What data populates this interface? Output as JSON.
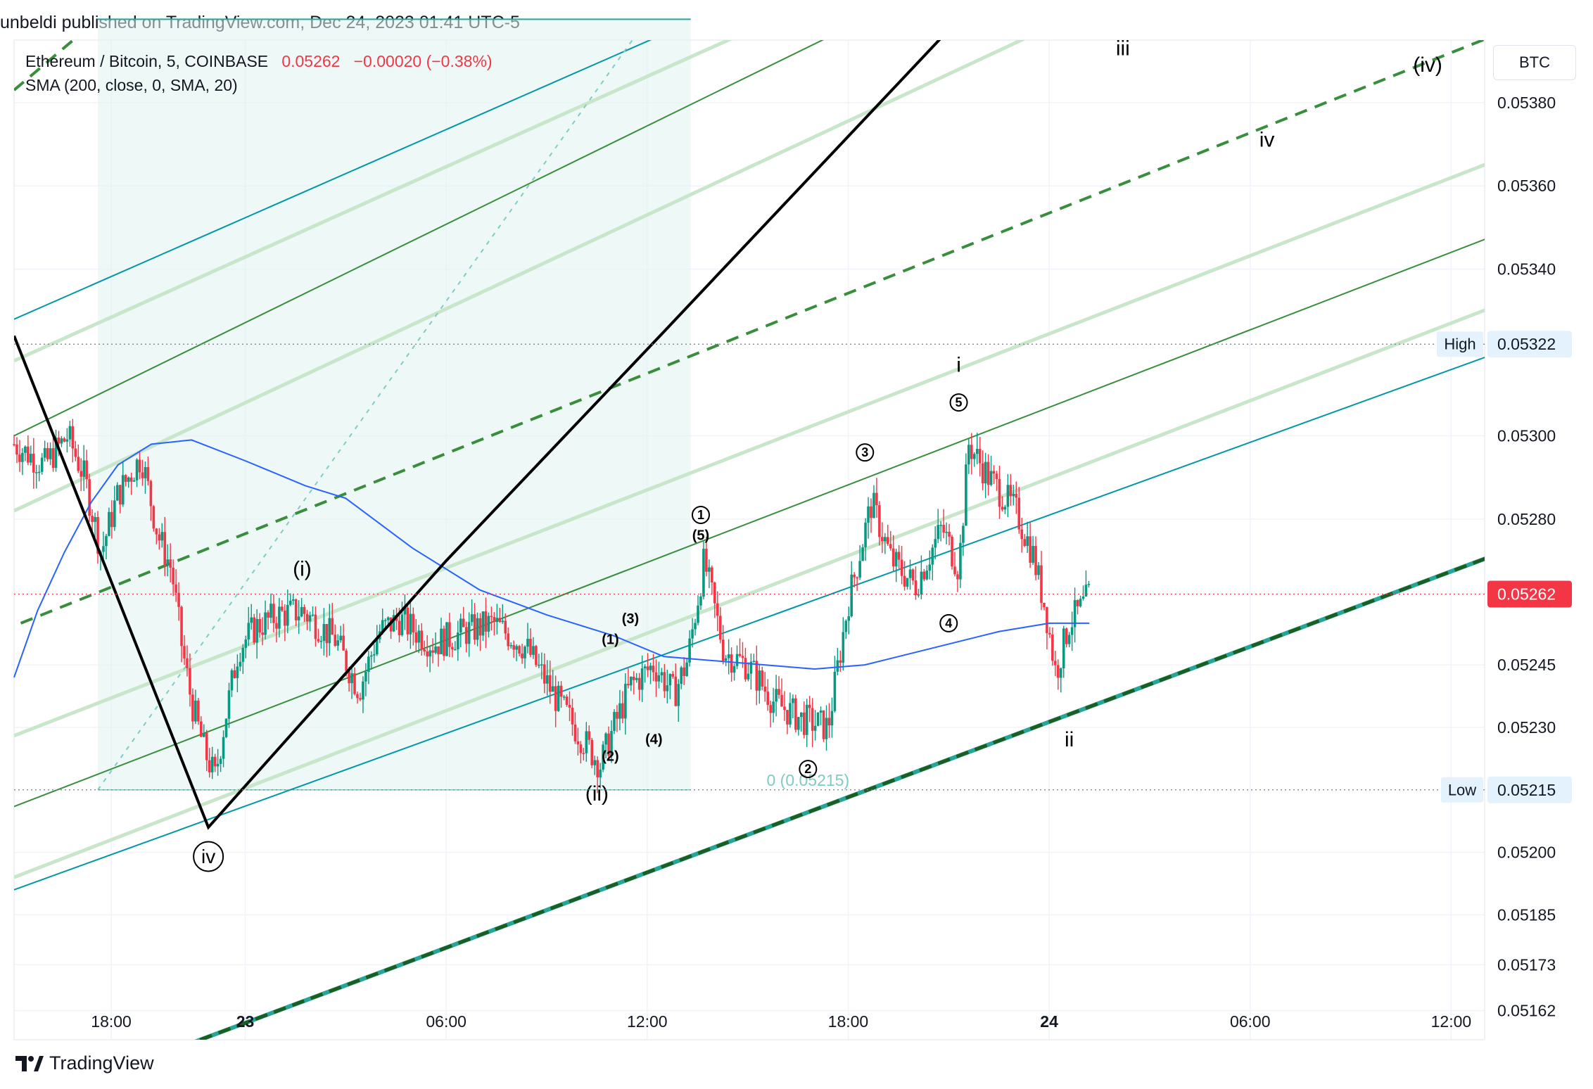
{
  "publisher": "unbeldi published on TradingView.com, Dec 24, 2023 01:41 UTC-5",
  "legend": {
    "symbol": "Ethereum / Bitcoin, 5, COINBASE",
    "last": "0.05262",
    "change": "−0.00020 (−0.38%)",
    "indicator": "SMA (200, close, 0, SMA, 20)"
  },
  "currency": "BTC",
  "brand": "TradingView",
  "colors": {
    "up": "#089981",
    "down": "#f23645",
    "sma": "#2962ff",
    "channel_dark": "#388e3c",
    "channel_light": "#c8e6c9",
    "teal": "#0097a7",
    "zone": "#e0f2f1",
    "last_price_bg": "#f23645",
    "high_low_bg": "#e3f2fd"
  },
  "chart_data": {
    "type": "candlestick",
    "title": "Ethereum / Bitcoin, 5, COINBASE",
    "interval_minutes": 5,
    "x_range_hours": [
      -6.9,
      37.0
    ],
    "ylim": [
      0.05155,
      0.05395
    ],
    "x_tick_labels": [
      {
        "label": "18:00",
        "t": -4.0
      },
      {
        "label": "23",
        "t": 0.0,
        "bold": true
      },
      {
        "label": "06:00",
        "t": 6.0
      },
      {
        "label": "12:00",
        "t": 12.0
      },
      {
        "label": "18:00",
        "t": 18.0
      },
      {
        "label": "24",
        "t": 24.0,
        "bold": true
      },
      {
        "label": "06:00",
        "t": 30.0
      },
      {
        "label": "12:00",
        "t": 36.0
      }
    ],
    "y_tick_labels": [
      "0.05380",
      "0.05360",
      "0.05340",
      "0.05300",
      "0.05280",
      "0.05245",
      "0.05230",
      "0.05200",
      "0.05185",
      "0.05173",
      "0.05162"
    ],
    "last_price": "0.05262",
    "high": {
      "label": "High",
      "value": "0.05322"
    },
    "low": {
      "label": "Low",
      "value": "0.05215"
    },
    "fib_label": "0 (0.05215)",
    "price_path": [
      [
        -6.9,
        0.05298
      ],
      [
        -6.0,
        0.05293
      ],
      [
        -5.3,
        0.053
      ],
      [
        -4.8,
        0.0529
      ],
      [
        -4.3,
        0.05272
      ],
      [
        -3.8,
        0.05286
      ],
      [
        -3.1,
        0.05295
      ],
      [
        -2.6,
        0.05276
      ],
      [
        -2.2,
        0.05268
      ],
      [
        -1.9,
        0.0525
      ],
      [
        -1.6,
        0.05236
      ],
      [
        -1.2,
        0.05224
      ],
      [
        -0.9,
        0.05218
      ],
      [
        -0.6,
        0.05232
      ],
      [
        -0.2,
        0.05249
      ],
      [
        0.3,
        0.05254
      ],
      [
        1.0,
        0.05257
      ],
      [
        1.7,
        0.05258
      ],
      [
        2.7,
        0.05251
      ],
      [
        3.4,
        0.05239
      ],
      [
        4.0,
        0.05253
      ],
      [
        4.6,
        0.05256
      ],
      [
        5.6,
        0.0525
      ],
      [
        6.6,
        0.05253
      ],
      [
        7.4,
        0.05255
      ],
      [
        8.4,
        0.05249
      ],
      [
        9.2,
        0.05238
      ],
      [
        10.0,
        0.05228
      ],
      [
        10.6,
        0.05221
      ],
      [
        11.0,
        0.0523
      ],
      [
        11.5,
        0.0524
      ],
      [
        12.2,
        0.05245
      ],
      [
        12.8,
        0.05238
      ],
      [
        13.2,
        0.05246
      ],
      [
        13.7,
        0.0527
      ],
      [
        14.3,
        0.05248
      ],
      [
        15.0,
        0.05245
      ],
      [
        15.8,
        0.05236
      ],
      [
        16.6,
        0.05232
      ],
      [
        17.4,
        0.0523
      ],
      [
        18.0,
        0.0526
      ],
      [
        18.7,
        0.05284
      ],
      [
        19.3,
        0.0527
      ],
      [
        20.0,
        0.05264
      ],
      [
        20.8,
        0.05278
      ],
      [
        21.3,
        0.05268
      ],
      [
        21.6,
        0.05298
      ],
      [
        22.2,
        0.0529
      ],
      [
        23.0,
        0.05282
      ],
      [
        23.5,
        0.05272
      ],
      [
        23.9,
        0.05258
      ],
      [
        24.2,
        0.05243
      ],
      [
        24.6,
        0.05255
      ],
      [
        25.0,
        0.05259
      ],
      [
        25.2,
        0.05262
      ]
    ],
    "sma_path": [
      [
        -6.9,
        0.05242
      ],
      [
        -6.2,
        0.05258
      ],
      [
        -5.4,
        0.05272
      ],
      [
        -4.6,
        0.05284
      ],
      [
        -3.8,
        0.05293
      ],
      [
        -2.8,
        0.05298
      ],
      [
        -1.6,
        0.05299
      ],
      [
        0.0,
        0.05294
      ],
      [
        1.8,
        0.05288
      ],
      [
        3.0,
        0.05285
      ],
      [
        5.0,
        0.05273
      ],
      [
        7.0,
        0.05263
      ],
      [
        9.0,
        0.05257
      ],
      [
        11.0,
        0.05252
      ],
      [
        12.5,
        0.05247
      ],
      [
        14.0,
        0.05246
      ],
      [
        15.5,
        0.05245
      ],
      [
        17.0,
        0.05244
      ],
      [
        18.5,
        0.05245
      ],
      [
        20.5,
        0.05249
      ],
      [
        22.5,
        0.05253
      ],
      [
        24.0,
        0.05255
      ],
      [
        25.2,
        0.05255
      ]
    ],
    "black_lines": [
      [
        [
          -6.9,
          0.05324
        ],
        [
          -1.1,
          0.05206
        ],
        [
          6.0,
          0.0527
        ],
        [
          12.5,
          0.05325
        ],
        [
          21.3,
          0.054
        ]
      ]
    ],
    "channel_lines": [
      {
        "style": "teal",
        "points": [
          [
            -6.9,
            0.05328
          ],
          [
            13.5,
            0.054
          ]
        ]
      },
      {
        "style": "teal",
        "points": [
          [
            -6.9,
            0.05191
          ],
          [
            40.5,
            0.05329
          ]
        ]
      },
      {
        "style": "dark",
        "points": [
          [
            -6.9,
            0.05211
          ],
          [
            40.5,
            0.05358
          ]
        ]
      },
      {
        "style": "dark",
        "points": [
          [
            -6.9,
            0.053
          ],
          [
            18.5,
            0.054
          ]
        ]
      },
      {
        "style": "light",
        "points": [
          [
            -6.9,
            0.05194
          ],
          [
            40.5,
            0.05341
          ]
        ]
      },
      {
        "style": "light",
        "points": [
          [
            -6.9,
            0.05228
          ],
          [
            40.5,
            0.05376
          ]
        ]
      },
      {
        "style": "light",
        "points": [
          [
            -6.9,
            0.05282
          ],
          [
            24.5,
            0.054
          ]
        ]
      },
      {
        "style": "light",
        "points": [
          [
            -6.9,
            0.05318
          ],
          [
            15.8,
            0.054
          ]
        ]
      },
      {
        "style": "dashed",
        "points": [
          [
            -6.7,
            0.05255
          ],
          [
            38.5,
            0.054
          ]
        ]
      },
      {
        "style": "dashed",
        "points": [
          [
            -6.9,
            0.05383
          ],
          [
            -4.4,
            0.054
          ]
        ]
      },
      {
        "style": "main",
        "points": [
          [
            -3.0,
            0.0515
          ],
          [
            40.5,
            0.05281
          ]
        ]
      },
      {
        "style": "dotted",
        "points": [
          [
            -4.4,
            0.05215
          ],
          [
            12.0,
            0.054
          ]
        ]
      }
    ],
    "shaded_zone": {
      "t_start": -4.4,
      "t_end": 13.3,
      "y_low": 0.05215,
      "y_high": 0.054
    },
    "wave_labels": [
      {
        "text": "(i)",
        "t": 1.7,
        "y": 0.05268,
        "style": "plain"
      },
      {
        "text": "(ii)",
        "t": 10.5,
        "y": 0.05214,
        "style": "plain"
      },
      {
        "text": "iv",
        "t": -1.1,
        "y": 0.05199,
        "style": "circled"
      },
      {
        "text": "(1)",
        "t": 10.9,
        "y": 0.05251,
        "style": "small"
      },
      {
        "text": "(2)",
        "t": 10.9,
        "y": 0.05223,
        "style": "small"
      },
      {
        "text": "(3)",
        "t": 11.5,
        "y": 0.05256,
        "style": "small"
      },
      {
        "text": "(4)",
        "t": 12.2,
        "y": 0.05227,
        "style": "small"
      },
      {
        "text": "(5)",
        "t": 13.6,
        "y": 0.05276,
        "style": "small"
      },
      {
        "text": "1",
        "t": 13.6,
        "y": 0.05281,
        "style": "circled-small"
      },
      {
        "text": "2",
        "t": 16.8,
        "y": 0.0522,
        "style": "circled-small"
      },
      {
        "text": "3",
        "t": 18.5,
        "y": 0.05296,
        "style": "circled-small"
      },
      {
        "text": "4",
        "t": 21.0,
        "y": 0.05255,
        "style": "circled-small"
      },
      {
        "text": "5",
        "t": 21.3,
        "y": 0.05308,
        "style": "circled-small"
      },
      {
        "text": "i",
        "t": 21.3,
        "y": 0.05317,
        "style": "plain"
      },
      {
        "text": "ii",
        "t": 24.6,
        "y": 0.05227,
        "style": "plain"
      },
      {
        "text": "iii",
        "t": 26.2,
        "y": 0.05393,
        "style": "plain"
      },
      {
        "text": "iv",
        "t": 30.5,
        "y": 0.05371,
        "style": "plain"
      },
      {
        "text": "(iv)",
        "t": 35.3,
        "y": 0.05389,
        "style": "plain"
      }
    ]
  }
}
